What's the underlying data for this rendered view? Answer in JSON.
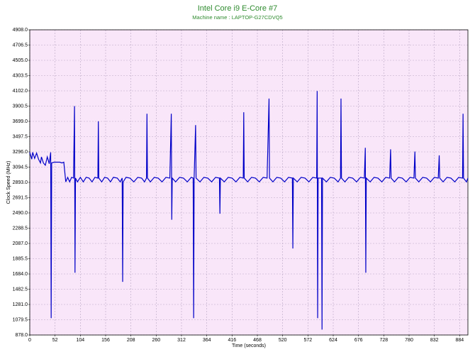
{
  "chart_data": {
    "type": "line",
    "title": "Intel Core i9 E-Core #7",
    "subtitle": "Machine name : LAPTOP-G27CDVQ5",
    "x_label": "Time (seconds)",
    "y_label": "Clock Speed (MHz)",
    "color": "#0000c8",
    "background": "#f9e6f9",
    "grid": true,
    "xlim": [
      0,
      901
    ],
    "ylim": [
      878,
      4908
    ],
    "xticks": [
      0,
      52,
      104,
      156,
      208,
      260,
      312,
      364,
      416,
      468,
      520,
      572,
      624,
      676,
      728,
      780,
      832,
      884
    ],
    "yticks": [
      {
        "value": 878,
        "label": "878.0"
      },
      1079.5,
      {
        "value": 1281,
        "label": "1281.0"
      },
      1482.5,
      {
        "value": 1684,
        "label": "1684.0"
      },
      1885.5,
      {
        "value": 2087,
        "label": "2087.0"
      },
      2288.5,
      {
        "value": 2490,
        "label": "2490.0"
      },
      2691.5,
      {
        "value": 2893,
        "label": "2893.0"
      },
      3094.5,
      {
        "value": 3296,
        "label": "3296.0"
      },
      3497.5,
      {
        "value": 3699,
        "label": "3699.0"
      },
      3900.5,
      {
        "value": 4102,
        "label": "4102.0"
      },
      4303.5,
      {
        "value": 4505,
        "label": "4505.0"
      },
      4706.5,
      {
        "value": 4908,
        "label": "4908.0"
      }
    ],
    "x": [
      0,
      4,
      6,
      10,
      14,
      18,
      22,
      24,
      28,
      32,
      36,
      40,
      43,
      44,
      45,
      50,
      56,
      62,
      66,
      70,
      74,
      78,
      82,
      86,
      90,
      92,
      93,
      94,
      98,
      104,
      110,
      116,
      122,
      128,
      134,
      140,
      141,
      142,
      148,
      154,
      160,
      166,
      172,
      180,
      186,
      190,
      191,
      192,
      198,
      206,
      214,
      222,
      230,
      236,
      240,
      241,
      242,
      248,
      256,
      264,
      272,
      280,
      288,
      291,
      292,
      293,
      300,
      308,
      316,
      324,
      332,
      336,
      337,
      338,
      341,
      342,
      350,
      358,
      366,
      374,
      382,
      390,
      391,
      392,
      400,
      408,
      416,
      424,
      432,
      439,
      440,
      441,
      448,
      456,
      464,
      472,
      480,
      488,
      492,
      493,
      500,
      508,
      516,
      524,
      532,
      540,
      541,
      542,
      550,
      558,
      566,
      574,
      582,
      590,
      591,
      592,
      593,
      600,
      601,
      602,
      610,
      618,
      626,
      634,
      639,
      640,
      641,
      648,
      656,
      664,
      672,
      680,
      688,
      690,
      691,
      692,
      700,
      708,
      716,
      724,
      732,
      740,
      742,
      743,
      750,
      758,
      766,
      774,
      782,
      790,
      792,
      793,
      800,
      808,
      816,
      824,
      832,
      840,
      842,
      843,
      850,
      858,
      866,
      874,
      882,
      890,
      891,
      892,
      898,
      901
    ],
    "values": [
      3290,
      3200,
      3290,
      3210,
      3280,
      3200,
      3150,
      3230,
      3150,
      3120,
      3230,
      3140,
      3290,
      1100,
      3150,
      3160,
      3160,
      3160,
      3150,
      3160,
      2900,
      2960,
      2900,
      2960,
      2950,
      3900,
      1700,
      2950,
      2900,
      2960,
      2900,
      2960,
      2950,
      2900,
      2960,
      2950,
      3700,
      2950,
      2900,
      2960,
      2950,
      2900,
      2960,
      2950,
      2900,
      2950,
      1580,
      2900,
      2960,
      2950,
      2900,
      2960,
      2950,
      2900,
      2950,
      3800,
      2950,
      2900,
      2960,
      2950,
      2900,
      2960,
      2950,
      3800,
      2400,
      2950,
      2900,
      2960,
      2950,
      2900,
      2960,
      2950,
      1100,
      2950,
      3650,
      2950,
      2900,
      2960,
      2950,
      2900,
      2960,
      2950,
      2480,
      2950,
      2900,
      2960,
      2950,
      2900,
      2960,
      2950,
      3820,
      2950,
      2900,
      2960,
      2950,
      2900,
      2960,
      2950,
      4000,
      2950,
      2900,
      2960,
      2950,
      2900,
      2960,
      2950,
      2020,
      2950,
      2900,
      2960,
      2950,
      2900,
      2960,
      2950,
      4100,
      1100,
      2950,
      2950,
      950,
      2950,
      2900,
      2960,
      2950,
      2900,
      2950,
      4000,
      2950,
      2900,
      2960,
      2950,
      2900,
      2960,
      2950,
      3350,
      1700,
      2950,
      2900,
      2960,
      2950,
      2900,
      2960,
      2950,
      3330,
      2950,
      2900,
      2960,
      2950,
      2900,
      2960,
      2950,
      3300,
      2950,
      2900,
      2960,
      2950,
      2900,
      2960,
      2950,
      3250,
      2950,
      2900,
      2960,
      2950,
      2900,
      2960,
      2950,
      3800,
      2950,
      2900,
      2950
    ]
  }
}
